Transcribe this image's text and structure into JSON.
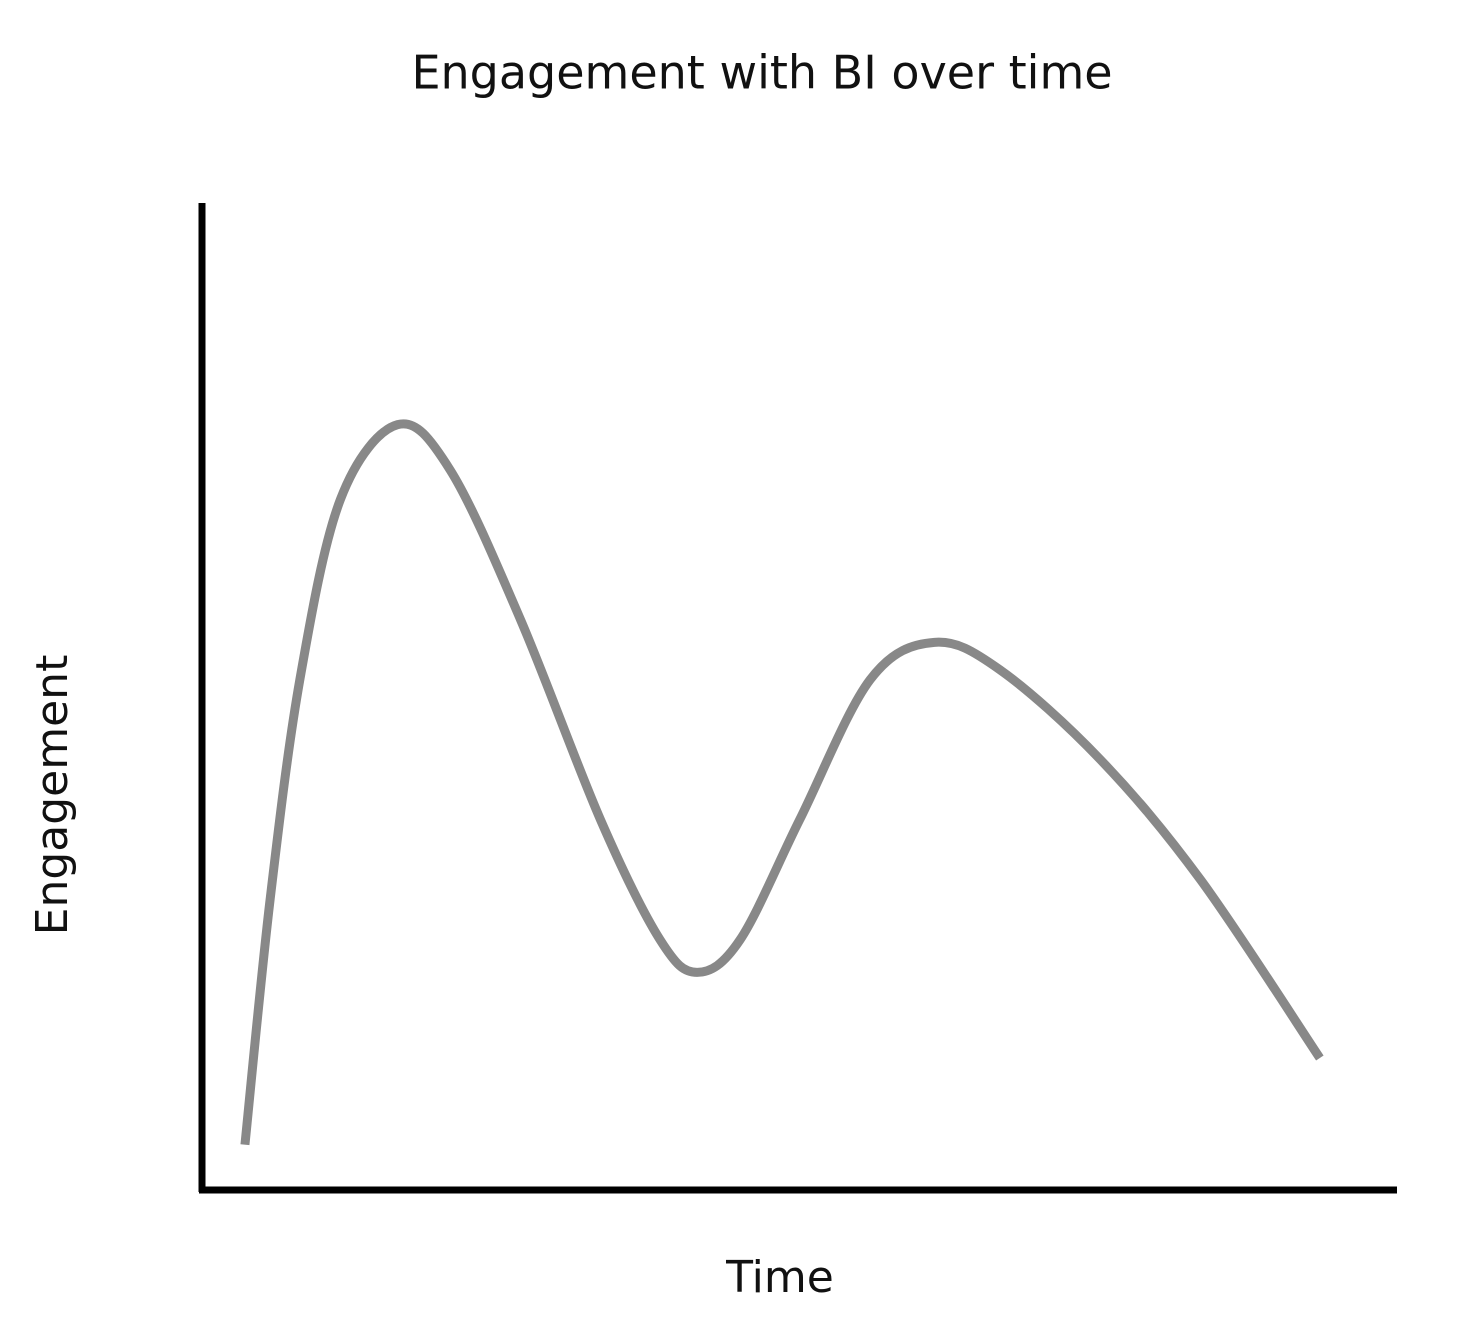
{
  "chart_data": {
    "type": "line",
    "title": "Engagement with BI over time",
    "x_label": "Time",
    "y_label": "Engagement",
    "x": [
      3.6,
      5.7,
      8.2,
      11.6,
      16.4,
      20.8,
      26.7,
      33.4,
      38.4,
      41.5,
      45.1,
      50.1,
      56.0,
      61.4,
      66.9,
      75.3,
      83.7,
      93.7
    ],
    "values": [
      4.6,
      29.4,
      51.8,
      70.1,
      77.7,
      73.1,
      57.9,
      37.6,
      25.4,
      22.1,
      25.4,
      37.6,
      51.8,
      55.6,
      52.8,
      43.7,
      31.5,
      13.4
    ],
    "color": "#888888",
    "xlim": [
      0,
      100
    ],
    "ylim": [
      0,
      100
    ]
  }
}
